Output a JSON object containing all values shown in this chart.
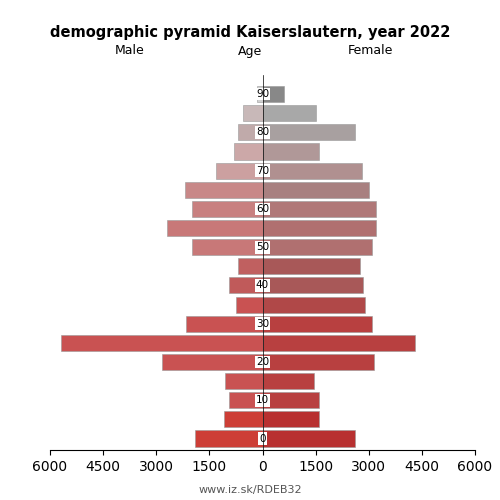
{
  "title": "demographic pyramid Kaiserslautern, year 2022",
  "xlabel_left": "Male",
  "xlabel_right": "Female",
  "xlabel_center": "Age",
  "footer": "www.iz.sk/RDEB32",
  "age_groups": [
    0,
    5,
    10,
    15,
    20,
    25,
    30,
    35,
    40,
    45,
    50,
    55,
    60,
    65,
    70,
    75,
    80,
    85,
    90
  ],
  "male": [
    1900,
    1100,
    950,
    1050,
    2850,
    5700,
    2150,
    750,
    950,
    700,
    2000,
    2700,
    2000,
    2200,
    1300,
    800,
    700,
    550,
    150
  ],
  "female": [
    2600,
    1600,
    1600,
    1450,
    3150,
    4300,
    3100,
    2900,
    2850,
    2750,
    3100,
    3200,
    3200,
    3000,
    2800,
    1600,
    2600,
    1500,
    600
  ],
  "male_colors": [
    "#cd3e36",
    "#cd3e36",
    "#c95252",
    "#c95252",
    "#c95252",
    "#c95252",
    "#c95252",
    "#c95252",
    "#c05a5a",
    "#c06060",
    "#c87878",
    "#c87878",
    "#c88080",
    "#c88888",
    "#cca0a0",
    "#cca8a8",
    "#c0aaaa",
    "#c8b8b8",
    "#d0d0d0"
  ],
  "female_colors": [
    "#b83030",
    "#b83030",
    "#b84040",
    "#b84040",
    "#b84040",
    "#b84040",
    "#b84040",
    "#b04848",
    "#a85858",
    "#a85858",
    "#b07070",
    "#b07070",
    "#b07878",
    "#a88080",
    "#b09090",
    "#b09898",
    "#a8a0a0",
    "#a8a8a8",
    "#888888"
  ],
  "xlim": 6000,
  "bar_height": 4.2,
  "ytick_positions": [
    0,
    10,
    20,
    30,
    40,
    50,
    60,
    70,
    80,
    90
  ],
  "xtick_positions": [
    -6000,
    -4500,
    -3000,
    -1500,
    0,
    1500,
    3000,
    4500,
    6000
  ],
  "xtick_labels": [
    "6000",
    "4500",
    "3000",
    "1500",
    "0",
    "1500",
    "3000",
    "4500",
    "6000"
  ]
}
